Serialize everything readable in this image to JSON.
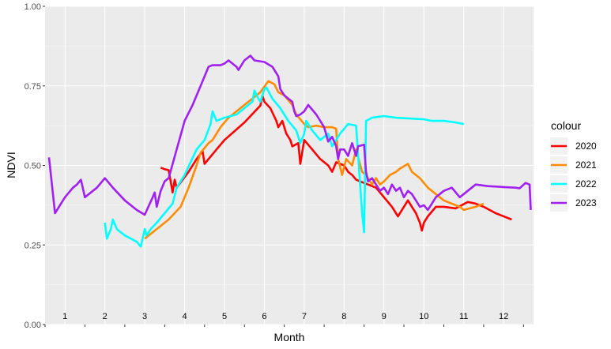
{
  "chart_data": {
    "type": "line",
    "title": "",
    "xlabel": "Month",
    "ylabel": "NDVI",
    "ylim": [
      0,
      1
    ],
    "xlim": [
      0.5,
      12.75
    ],
    "y_ticks": [
      "0.00",
      "0.25",
      "0.50",
      "0.75",
      "1.00"
    ],
    "y_tick_values": [
      0,
      0.25,
      0.5,
      0.75,
      1.0
    ],
    "month_labels": [
      "1",
      "2",
      "3",
      "4",
      "5",
      "6",
      "7",
      "8",
      "9",
      "10",
      "11",
      "12"
    ],
    "month_label_y": 0.017,
    "grid": true,
    "legend": {
      "title": "colour",
      "position": "right"
    },
    "series": [
      {
        "name": "2020",
        "color": "#ff0000",
        "points": [
          [
            3.4,
            0.493
          ],
          [
            3.5,
            0.488
          ],
          [
            3.6,
            0.485
          ],
          [
            3.7,
            0.415
          ],
          [
            3.75,
            0.455
          ],
          [
            3.8,
            0.43
          ],
          [
            4.1,
            0.48
          ],
          [
            4.3,
            0.52
          ],
          [
            4.45,
            0.545
          ],
          [
            4.5,
            0.505
          ],
          [
            4.8,
            0.55
          ],
          [
            5.0,
            0.58
          ],
          [
            5.5,
            0.635
          ],
          [
            5.9,
            0.688
          ],
          [
            5.95,
            0.72
          ],
          [
            6.0,
            0.7
          ],
          [
            6.15,
            0.68
          ],
          [
            6.3,
            0.64
          ],
          [
            6.35,
            0.62
          ],
          [
            6.45,
            0.64
          ],
          [
            6.55,
            0.6
          ],
          [
            6.65,
            0.58
          ],
          [
            6.7,
            0.56
          ],
          [
            6.85,
            0.57
          ],
          [
            6.9,
            0.505
          ],
          [
            7.0,
            0.58
          ],
          [
            7.2,
            0.55
          ],
          [
            7.4,
            0.52
          ],
          [
            7.6,
            0.5
          ],
          [
            7.7,
            0.48
          ],
          [
            7.8,
            0.51
          ],
          [
            8.0,
            0.5
          ],
          [
            8.1,
            0.48
          ],
          [
            8.2,
            0.47
          ],
          [
            8.3,
            0.455
          ],
          [
            8.4,
            0.45
          ],
          [
            8.6,
            0.44
          ],
          [
            8.8,
            0.43
          ],
          [
            9.0,
            0.4
          ],
          [
            9.2,
            0.37
          ],
          [
            9.35,
            0.34
          ],
          [
            9.5,
            0.37
          ],
          [
            9.6,
            0.39
          ],
          [
            9.7,
            0.37
          ],
          [
            9.8,
            0.35
          ],
          [
            9.9,
            0.32
          ],
          [
            9.95,
            0.295
          ],
          [
            10.0,
            0.32
          ],
          [
            10.1,
            0.34
          ],
          [
            10.3,
            0.37
          ],
          [
            10.5,
            0.37
          ],
          [
            10.8,
            0.365
          ],
          [
            11.1,
            0.385
          ],
          [
            11.3,
            0.38
          ],
          [
            11.5,
            0.37
          ],
          [
            11.8,
            0.35
          ],
          [
            12.2,
            0.33
          ]
        ]
      },
      {
        "name": "2021",
        "color": "#ff8c00",
        "points": [
          [
            3.0,
            0.27
          ],
          [
            3.3,
            0.3
          ],
          [
            3.6,
            0.33
          ],
          [
            3.9,
            0.37
          ],
          [
            4.1,
            0.43
          ],
          [
            4.3,
            0.5
          ],
          [
            4.4,
            0.54
          ],
          [
            4.6,
            0.57
          ],
          [
            4.7,
            0.58
          ],
          [
            4.9,
            0.62
          ],
          [
            5.1,
            0.65
          ],
          [
            5.3,
            0.67
          ],
          [
            5.6,
            0.7
          ],
          [
            5.9,
            0.73
          ],
          [
            6.1,
            0.765
          ],
          [
            6.25,
            0.755
          ],
          [
            6.35,
            0.73
          ],
          [
            6.5,
            0.72
          ],
          [
            6.7,
            0.69
          ],
          [
            6.8,
            0.66
          ],
          [
            7.0,
            0.63
          ],
          [
            7.1,
            0.62
          ],
          [
            7.3,
            0.625
          ],
          [
            7.5,
            0.62
          ],
          [
            7.7,
            0.62
          ],
          [
            7.8,
            0.615
          ],
          [
            7.85,
            0.52
          ],
          [
            7.95,
            0.47
          ],
          [
            8.05,
            0.52
          ],
          [
            8.2,
            0.5
          ],
          [
            8.3,
            0.55
          ],
          [
            8.45,
            0.48
          ],
          [
            8.55,
            0.47
          ],
          [
            8.7,
            0.44
          ],
          [
            8.8,
            0.46
          ],
          [
            8.9,
            0.44
          ],
          [
            9.0,
            0.45
          ],
          [
            9.15,
            0.47
          ],
          [
            9.3,
            0.48
          ],
          [
            9.4,
            0.49
          ],
          [
            9.6,
            0.505
          ],
          [
            9.7,
            0.48
          ],
          [
            9.9,
            0.46
          ],
          [
            10.1,
            0.43
          ],
          [
            10.3,
            0.41
          ],
          [
            10.5,
            0.39
          ],
          [
            10.7,
            0.38
          ],
          [
            10.9,
            0.37
          ],
          [
            11.0,
            0.36
          ],
          [
            11.3,
            0.37
          ],
          [
            11.5,
            0.38
          ]
        ]
      },
      {
        "name": "2022",
        "color": "#00ffff",
        "points": [
          [
            2.0,
            0.32
          ],
          [
            2.05,
            0.27
          ],
          [
            2.15,
            0.3
          ],
          [
            2.2,
            0.33
          ],
          [
            2.3,
            0.3
          ],
          [
            2.5,
            0.28
          ],
          [
            2.8,
            0.26
          ],
          [
            2.9,
            0.245
          ],
          [
            3.0,
            0.3
          ],
          [
            3.05,
            0.28
          ],
          [
            3.15,
            0.3
          ],
          [
            3.3,
            0.32
          ],
          [
            3.5,
            0.35
          ],
          [
            3.7,
            0.38
          ],
          [
            3.8,
            0.43
          ],
          [
            4.0,
            0.47
          ],
          [
            4.3,
            0.55
          ],
          [
            4.5,
            0.58
          ],
          [
            4.65,
            0.63
          ],
          [
            4.7,
            0.67
          ],
          [
            4.8,
            0.64
          ],
          [
            5.0,
            0.65
          ],
          [
            5.3,
            0.66
          ],
          [
            5.5,
            0.68
          ],
          [
            5.7,
            0.7
          ],
          [
            5.75,
            0.735
          ],
          [
            5.85,
            0.71
          ],
          [
            5.9,
            0.7
          ],
          [
            6.0,
            0.74
          ],
          [
            6.05,
            0.745
          ],
          [
            6.2,
            0.71
          ],
          [
            6.4,
            0.68
          ],
          [
            6.6,
            0.64
          ],
          [
            6.8,
            0.61
          ],
          [
            6.9,
            0.57
          ],
          [
            7.0,
            0.6
          ],
          [
            7.05,
            0.64
          ],
          [
            7.2,
            0.61
          ],
          [
            7.4,
            0.58
          ],
          [
            7.6,
            0.6
          ],
          [
            7.7,
            0.56
          ],
          [
            7.9,
            0.6
          ],
          [
            8.1,
            0.63
          ],
          [
            8.3,
            0.625
          ],
          [
            8.45,
            0.35
          ],
          [
            8.5,
            0.29
          ],
          [
            8.55,
            0.64
          ],
          [
            8.7,
            0.65
          ],
          [
            9.0,
            0.655
          ],
          [
            9.3,
            0.65
          ],
          [
            9.6,
            0.648
          ],
          [
            10.0,
            0.645
          ],
          [
            10.2,
            0.64
          ],
          [
            10.5,
            0.64
          ],
          [
            10.8,
            0.635
          ],
          [
            11.0,
            0.63
          ]
        ]
      },
      {
        "name": "2023",
        "color": "#a020f0",
        "points": [
          [
            0.6,
            0.525
          ],
          [
            0.75,
            0.35
          ],
          [
            1.0,
            0.4
          ],
          [
            1.2,
            0.43
          ],
          [
            1.3,
            0.44
          ],
          [
            1.4,
            0.455
          ],
          [
            1.5,
            0.4
          ],
          [
            1.8,
            0.43
          ],
          [
            2.0,
            0.46
          ],
          [
            2.2,
            0.43
          ],
          [
            2.5,
            0.39
          ],
          [
            2.8,
            0.36
          ],
          [
            3.0,
            0.345
          ],
          [
            3.2,
            0.4
          ],
          [
            3.25,
            0.415
          ],
          [
            3.3,
            0.37
          ],
          [
            3.4,
            0.42
          ],
          [
            3.5,
            0.45
          ],
          [
            3.6,
            0.46
          ],
          [
            3.8,
            0.55
          ],
          [
            4.0,
            0.64
          ],
          [
            4.2,
            0.69
          ],
          [
            4.4,
            0.75
          ],
          [
            4.5,
            0.78
          ],
          [
            4.6,
            0.81
          ],
          [
            4.7,
            0.815
          ],
          [
            4.9,
            0.815
          ],
          [
            5.0,
            0.82
          ],
          [
            5.1,
            0.83
          ],
          [
            5.2,
            0.82
          ],
          [
            5.3,
            0.81
          ],
          [
            5.35,
            0.8
          ],
          [
            5.5,
            0.83
          ],
          [
            5.6,
            0.84
          ],
          [
            5.65,
            0.845
          ],
          [
            5.75,
            0.83
          ],
          [
            6.0,
            0.825
          ],
          [
            6.2,
            0.81
          ],
          [
            6.35,
            0.78
          ],
          [
            6.4,
            0.74
          ],
          [
            6.5,
            0.72
          ],
          [
            6.6,
            0.71
          ],
          [
            6.7,
            0.7
          ],
          [
            6.75,
            0.67
          ],
          [
            6.8,
            0.655
          ],
          [
            6.9,
            0.66
          ],
          [
            7.0,
            0.67
          ],
          [
            7.1,
            0.69
          ],
          [
            7.3,
            0.66
          ],
          [
            7.5,
            0.62
          ],
          [
            7.6,
            0.575
          ],
          [
            7.7,
            0.59
          ],
          [
            7.8,
            0.56
          ],
          [
            7.85,
            0.52
          ],
          [
            7.9,
            0.55
          ],
          [
            8.0,
            0.55
          ],
          [
            8.1,
            0.53
          ],
          [
            8.15,
            0.55
          ],
          [
            8.2,
            0.57
          ],
          [
            8.3,
            0.53
          ],
          [
            8.35,
            0.56
          ],
          [
            8.5,
            0.565
          ],
          [
            8.55,
            0.48
          ],
          [
            8.6,
            0.45
          ],
          [
            8.7,
            0.46
          ],
          [
            8.8,
            0.44
          ],
          [
            8.9,
            0.42
          ],
          [
            9.0,
            0.43
          ],
          [
            9.1,
            0.41
          ],
          [
            9.2,
            0.44
          ],
          [
            9.3,
            0.42
          ],
          [
            9.4,
            0.43
          ],
          [
            9.5,
            0.4
          ],
          [
            9.6,
            0.42
          ],
          [
            9.7,
            0.41
          ],
          [
            9.8,
            0.39
          ],
          [
            9.9,
            0.37
          ],
          [
            10.0,
            0.375
          ],
          [
            10.1,
            0.36
          ],
          [
            10.2,
            0.38
          ],
          [
            10.3,
            0.4
          ],
          [
            10.5,
            0.42
          ],
          [
            10.7,
            0.43
          ],
          [
            10.9,
            0.4
          ],
          [
            11.1,
            0.42
          ],
          [
            11.3,
            0.44
          ],
          [
            11.6,
            0.435
          ],
          [
            12.0,
            0.432
          ],
          [
            12.3,
            0.43
          ],
          [
            12.4,
            0.428
          ],
          [
            12.55,
            0.445
          ],
          [
            12.65,
            0.44
          ],
          [
            12.68,
            0.36
          ]
        ]
      }
    ]
  }
}
